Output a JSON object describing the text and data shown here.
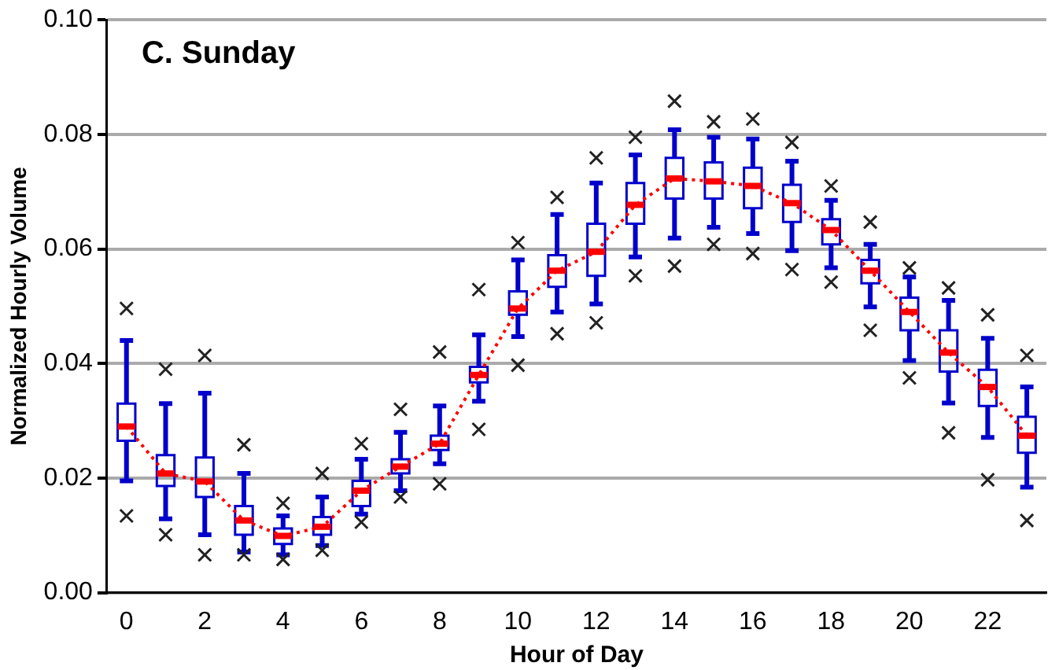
{
  "chart_data": {
    "type": "box",
    "title": "C. Sunday",
    "xlabel": "Hour of Day",
    "ylabel": "Normalized Hourly Volume",
    "categories": [
      "0",
      null,
      "2",
      null,
      "4",
      null,
      "6",
      null,
      "8",
      null,
      "10",
      null,
      "12",
      null,
      "14",
      null,
      "16",
      null,
      "18",
      null,
      "20",
      null,
      "22",
      null
    ],
    "ylim": [
      0,
      0.1
    ],
    "yticks": [
      {
        "value": 0,
        "label": "0.00"
      },
      {
        "value": 0.02,
        "label": "0.02"
      },
      {
        "value": 0.04,
        "label": "0.04"
      },
      {
        "value": 0.06,
        "label": "0.06"
      },
      {
        "value": 0.08,
        "label": "0.08"
      },
      {
        "value": 0.1,
        "label": "0.10"
      }
    ],
    "grid": "y",
    "series": [
      {
        "type": "box",
        "color": "#0000cc",
        "boxes": [
          {
            "low": 0.0195,
            "q1": 0.0265,
            "median": 0.029,
            "q3": 0.033,
            "high": 0.044,
            "outliers": [
              0.0496,
              0.0134
            ]
          },
          {
            "low": 0.0129,
            "q1": 0.0186,
            "median": 0.0208,
            "q3": 0.024,
            "high": 0.033,
            "outliers": [
              0.039,
              0.0101
            ]
          },
          {
            "low": 0.0101,
            "q1": 0.0167,
            "median": 0.0194,
            "q3": 0.0236,
            "high": 0.0348,
            "outliers": [
              0.0414,
              0.0066
            ]
          },
          {
            "low": 0.0071,
            "q1": 0.0101,
            "median": 0.0126,
            "q3": 0.0151,
            "high": 0.0208,
            "outliers": [
              0.0258,
              0.0066
            ]
          },
          {
            "low": 0.0066,
            "q1": 0.0085,
            "median": 0.0099,
            "q3": 0.0112,
            "high": 0.0134,
            "outliers": [
              0.0156,
              0.0058
            ]
          },
          {
            "low": 0.0082,
            "q1": 0.0101,
            "median": 0.0115,
            "q3": 0.0132,
            "high": 0.0167,
            "outliers": [
              0.0208,
              0.0074
            ]
          },
          {
            "low": 0.0137,
            "q1": 0.0151,
            "median": 0.0178,
            "q3": 0.0195,
            "high": 0.0233,
            "outliers": [
              0.026,
              0.0123
            ]
          },
          {
            "low": 0.0178,
            "q1": 0.0208,
            "median": 0.022,
            "q3": 0.0233,
            "high": 0.028,
            "outliers": [
              0.032,
              0.0167
            ]
          },
          {
            "low": 0.0225,
            "q1": 0.0249,
            "median": 0.026,
            "q3": 0.0274,
            "high": 0.0326,
            "outliers": [
              0.042,
              0.019
            ]
          },
          {
            "low": 0.0334,
            "q1": 0.0367,
            "median": 0.038,
            "q3": 0.0394,
            "high": 0.045,
            "outliers": [
              0.0529,
              0.0285
            ]
          },
          {
            "low": 0.0447,
            "q1": 0.0485,
            "median": 0.0496,
            "q3": 0.0526,
            "high": 0.0581,
            "outliers": [
              0.0611,
              0.0397
            ]
          },
          {
            "low": 0.049,
            "q1": 0.0534,
            "median": 0.0562,
            "q3": 0.0589,
            "high": 0.066,
            "outliers": [
              0.069,
              0.0452
            ]
          },
          {
            "low": 0.0504,
            "q1": 0.0553,
            "median": 0.0595,
            "q3": 0.0644,
            "high": 0.0715,
            "outliers": [
              0.0759,
              0.0471
            ]
          },
          {
            "low": 0.0586,
            "q1": 0.0644,
            "median": 0.0677,
            "q3": 0.0715,
            "high": 0.0764,
            "outliers": [
              0.0795,
              0.0553
            ]
          },
          {
            "low": 0.0619,
            "q1": 0.0688,
            "median": 0.0723,
            "q3": 0.0759,
            "high": 0.0808,
            "outliers": [
              0.0858,
              0.057
            ]
          },
          {
            "low": 0.0638,
            "q1": 0.0688,
            "median": 0.0718,
            "q3": 0.0751,
            "high": 0.0795,
            "outliers": [
              0.0822,
              0.0608
            ]
          },
          {
            "low": 0.0627,
            "q1": 0.0671,
            "median": 0.071,
            "q3": 0.0742,
            "high": 0.0792,
            "outliers": [
              0.0827,
              0.0592
            ]
          },
          {
            "low": 0.0597,
            "q1": 0.0647,
            "median": 0.068,
            "q3": 0.0712,
            "high": 0.0753,
            "outliers": [
              0.0786,
              0.0564
            ]
          },
          {
            "low": 0.0567,
            "q1": 0.0608,
            "median": 0.0633,
            "q3": 0.0652,
            "high": 0.0685,
            "outliers": [
              0.071,
              0.0542
            ]
          },
          {
            "low": 0.0499,
            "q1": 0.054,
            "median": 0.0562,
            "q3": 0.0581,
            "high": 0.0608,
            "outliers": [
              0.0647,
              0.0458
            ]
          },
          {
            "low": 0.0405,
            "q1": 0.0458,
            "median": 0.049,
            "q3": 0.0515,
            "high": 0.0551,
            "outliers": [
              0.0567,
              0.0375
            ]
          },
          {
            "low": 0.0331,
            "q1": 0.0386,
            "median": 0.0419,
            "q3": 0.0458,
            "high": 0.051,
            "outliers": [
              0.0532,
              0.0279
            ]
          },
          {
            "low": 0.0271,
            "q1": 0.0326,
            "median": 0.0359,
            "q3": 0.0389,
            "high": 0.0444,
            "outliers": [
              0.0485,
              0.0197
            ]
          },
          {
            "low": 0.0184,
            "q1": 0.0244,
            "median": 0.0274,
            "q3": 0.0307,
            "high": 0.0359,
            "outliers": [
              0.0414,
              0.0126
            ]
          }
        ]
      },
      {
        "type": "line",
        "color": "#ff0000",
        "line_style": "dotted",
        "marker": "none",
        "values": [
          0.029,
          0.0208,
          0.0194,
          0.0126,
          0.0099,
          0.0115,
          0.0178,
          0.022,
          0.026,
          0.038,
          0.0496,
          0.0562,
          0.0595,
          0.0677,
          0.0723,
          0.0718,
          0.071,
          0.068,
          0.0633,
          0.0562,
          0.049,
          0.0419,
          0.0359,
          0.0274
        ]
      }
    ]
  }
}
